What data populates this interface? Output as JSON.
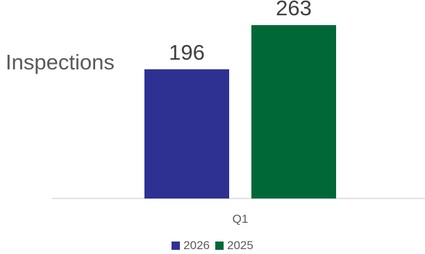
{
  "chart_data": {
    "type": "bar",
    "title": "",
    "xlabel": "",
    "ylabel": "Inspections",
    "categories": [
      "Q1"
    ],
    "series": [
      {
        "name": "2026",
        "values": [
          196
        ],
        "color": "#2e3192"
      },
      {
        "name": "2025",
        "values": [
          263
        ],
        "color": "#006837"
      }
    ],
    "ylim": [
      0,
      280
    ],
    "grid": false,
    "legend": "bottom",
    "data_labels": true
  }
}
